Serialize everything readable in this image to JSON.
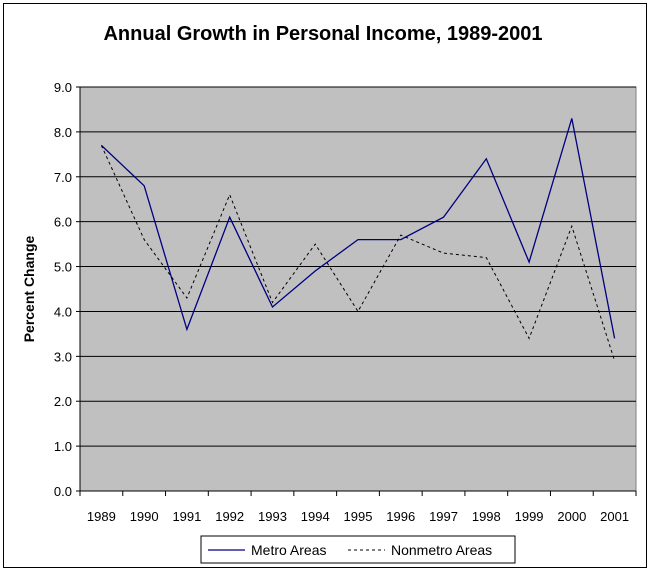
{
  "chart_data": {
    "type": "line",
    "title": "Annual Growth in Personal Income, 1989-2001",
    "xlabel": "",
    "ylabel": "Percent Change",
    "categories": [
      "1989",
      "1990",
      "1991",
      "1992",
      "1993",
      "1994",
      "1995",
      "1996",
      "1997",
      "1998",
      "1999",
      "2000",
      "2001"
    ],
    "y_ticks": [
      "0.0",
      "1.0",
      "2.0",
      "3.0",
      "4.0",
      "5.0",
      "6.0",
      "7.0",
      "8.0",
      "9.0"
    ],
    "ylim": [
      0,
      9
    ],
    "grid": true,
    "legend_position": "bottom",
    "plot_background": "#c0c0c0",
    "series": [
      {
        "name": "Metro Areas",
        "color": "#000080",
        "style": "solid",
        "values": [
          7.7,
          6.8,
          3.6,
          6.1,
          4.1,
          4.9,
          5.6,
          5.6,
          6.1,
          7.4,
          5.1,
          8.3,
          3.4
        ]
      },
      {
        "name": "Nonmetro Areas",
        "color": "#000000",
        "style": "dashed",
        "values": [
          7.7,
          5.6,
          4.3,
          6.6,
          4.2,
          5.5,
          4.0,
          5.7,
          5.3,
          5.2,
          3.4,
          5.9,
          2.9
        ]
      }
    ]
  }
}
